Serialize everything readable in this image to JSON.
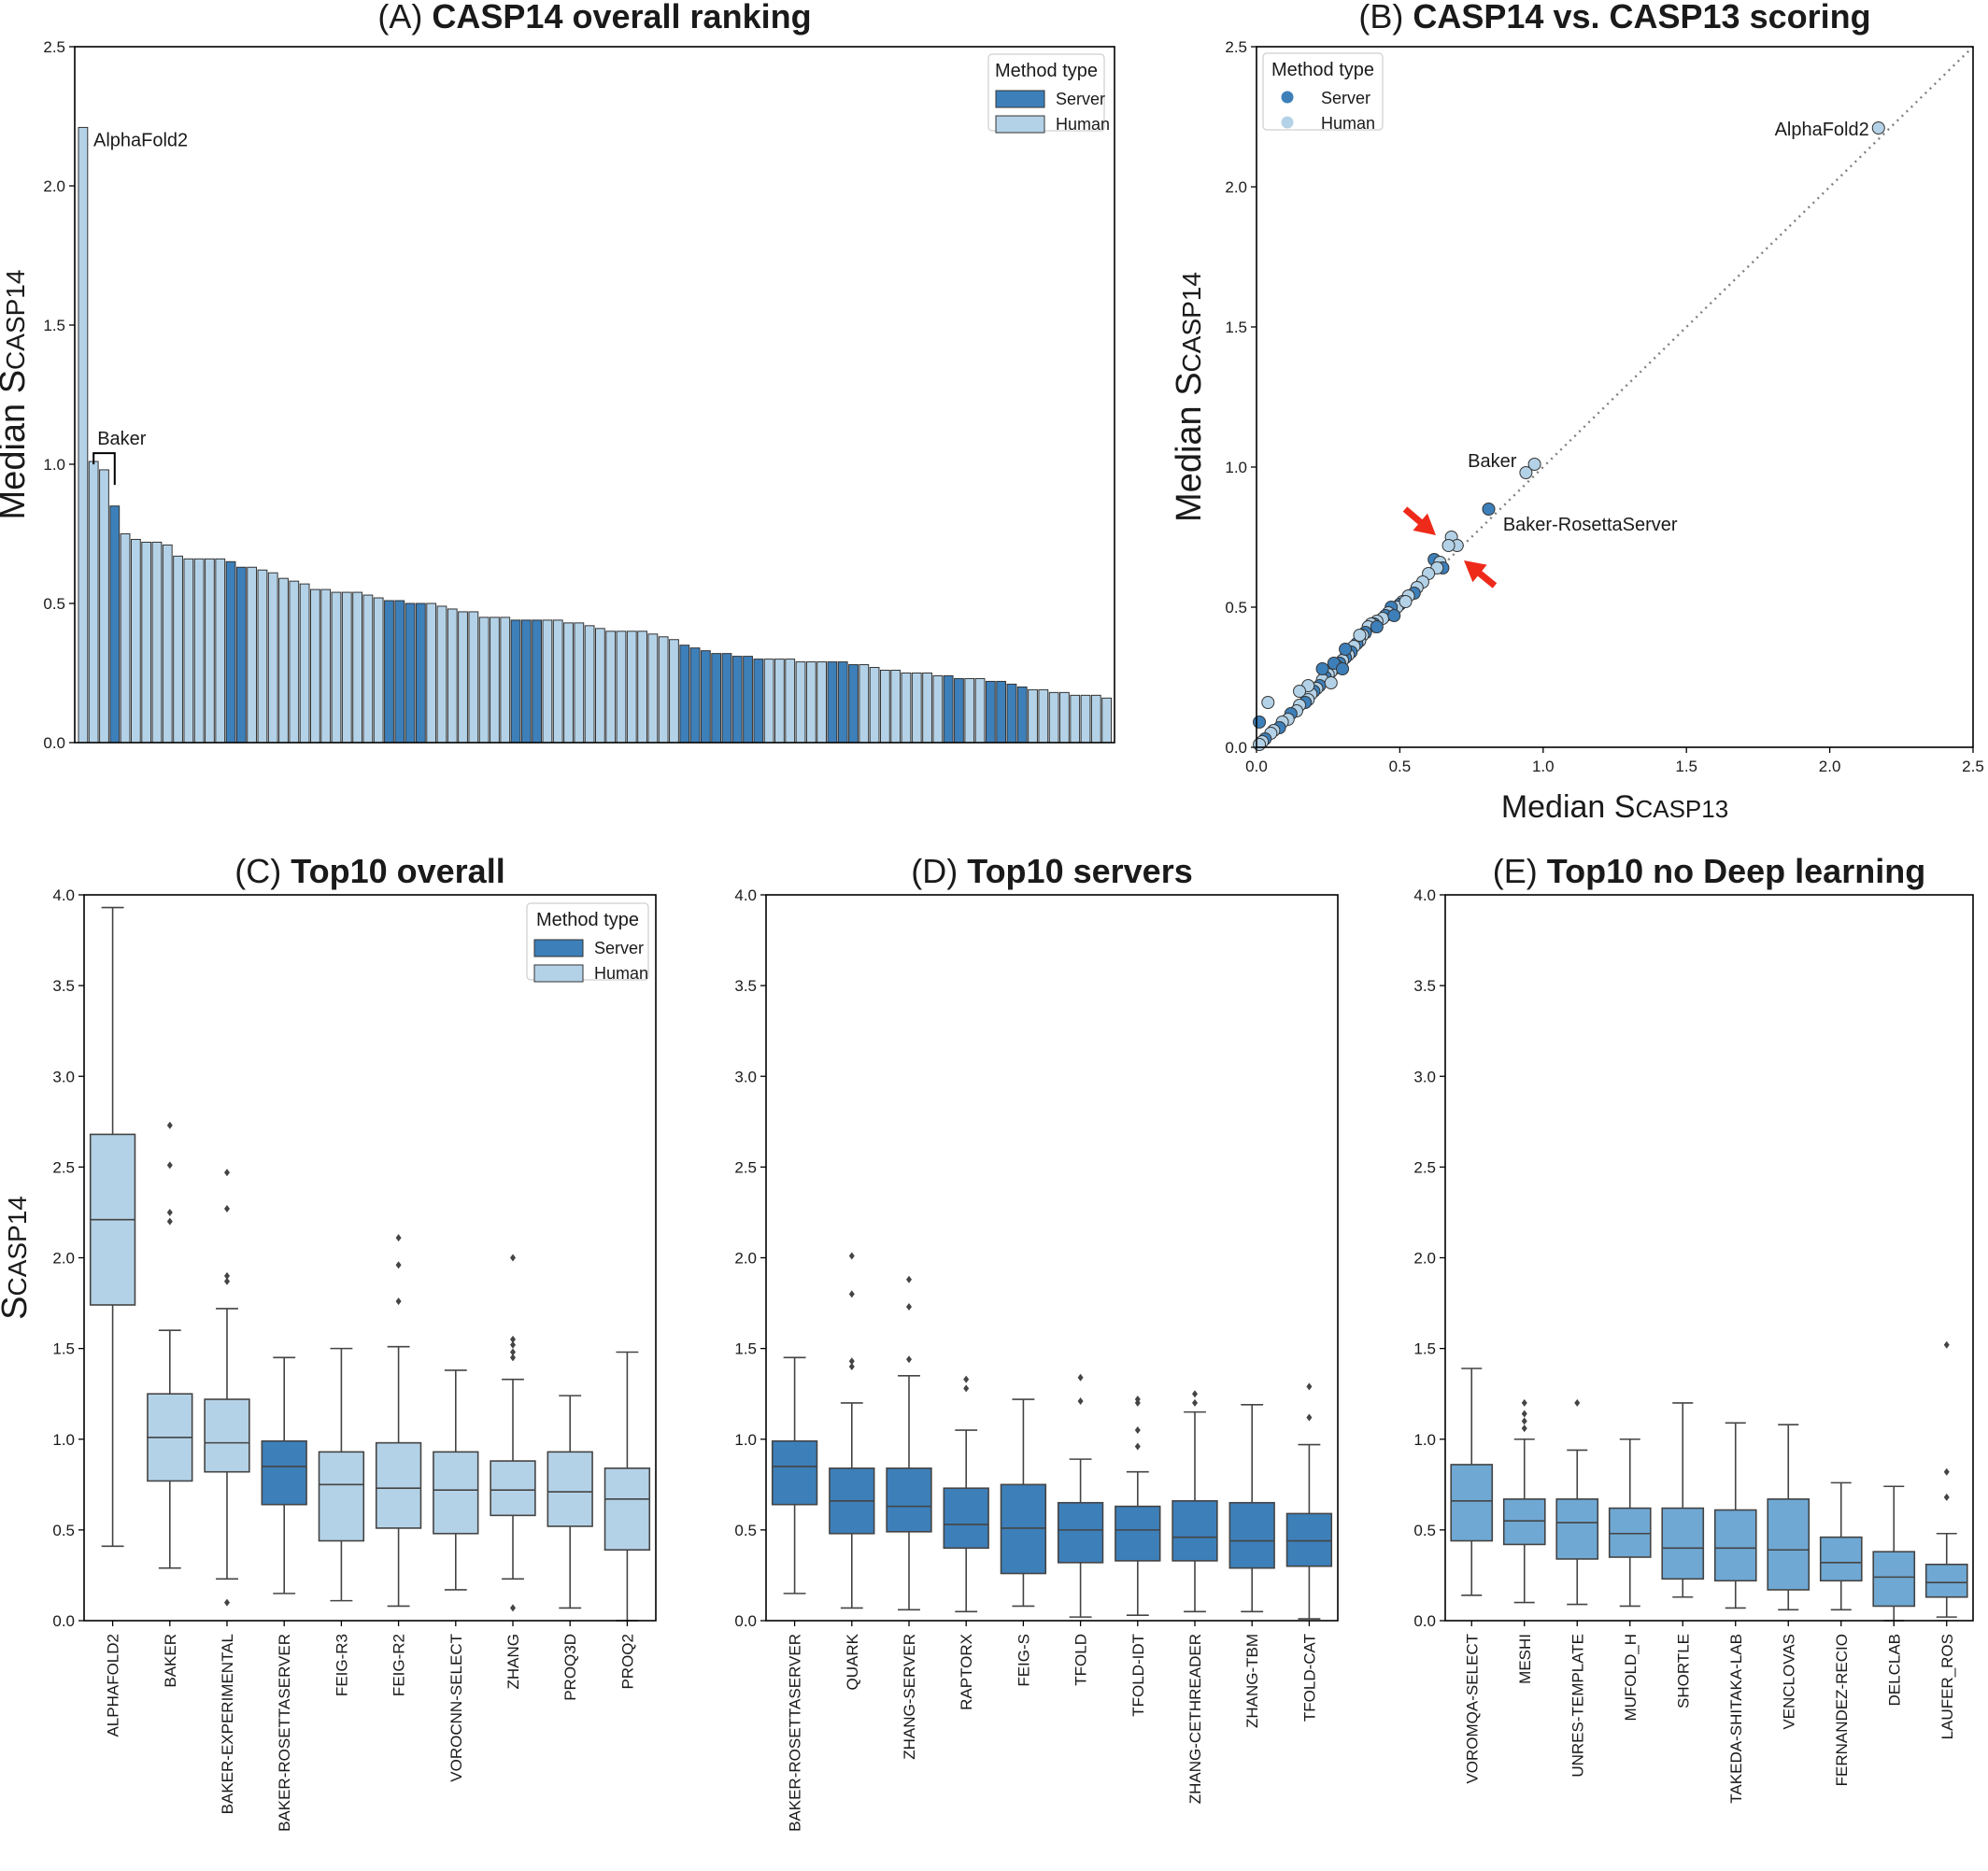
{
  "colors": {
    "server": "#3d7fb9",
    "human": "#b4d2e7",
    "noDL": "#6fa8d3",
    "edge": "#333333",
    "diag": "#7f7f7f",
    "arrow": "#ee2a1b"
  },
  "legend": {
    "title": "Method type",
    "server": "Server",
    "human": "Human"
  },
  "chart_data": [
    {
      "panel": "A",
      "type": "bar",
      "title_prefix": "(A)",
      "title": "CASP14 overall ranking",
      "ylabel_main": "Median S",
      "ylabel_sub": "CASP14",
      "xlabel": "",
      "ylim": [
        0,
        2.5
      ],
      "yticks": [
        "0.0",
        "0.5",
        "1.0",
        "1.5",
        "2.0",
        "2.5"
      ],
      "legend_position": "top-right",
      "annotations": [
        "AlphaFold2",
        "Baker"
      ],
      "values": [
        2.21,
        1.01,
        0.98,
        0.85,
        0.75,
        0.73,
        0.72,
        0.72,
        0.71,
        0.67,
        0.66,
        0.66,
        0.66,
        0.66,
        0.65,
        0.63,
        0.63,
        0.62,
        0.61,
        0.59,
        0.58,
        0.57,
        0.55,
        0.55,
        0.54,
        0.54,
        0.54,
        0.53,
        0.52,
        0.51,
        0.51,
        0.5,
        0.5,
        0.5,
        0.49,
        0.48,
        0.47,
        0.47,
        0.45,
        0.45,
        0.45,
        0.44,
        0.44,
        0.44,
        0.44,
        0.44,
        0.43,
        0.43,
        0.42,
        0.41,
        0.4,
        0.4,
        0.4,
        0.4,
        0.39,
        0.38,
        0.37,
        0.35,
        0.34,
        0.33,
        0.32,
        0.32,
        0.31,
        0.31,
        0.3,
        0.3,
        0.3,
        0.3,
        0.29,
        0.29,
        0.29,
        0.29,
        0.29,
        0.28,
        0.28,
        0.27,
        0.26,
        0.26,
        0.25,
        0.25,
        0.25,
        0.24,
        0.24,
        0.23,
        0.23,
        0.23,
        0.22,
        0.22,
        0.21,
        0.2,
        0.19,
        0.19,
        0.18,
        0.18,
        0.17,
        0.17,
        0.17,
        0.16
      ],
      "types": [
        "H",
        "H",
        "H",
        "S",
        "H",
        "H",
        "H",
        "H",
        "H",
        "H",
        "H",
        "H",
        "H",
        "H",
        "S",
        "S",
        "H",
        "H",
        "H",
        "H",
        "H",
        "H",
        "H",
        "H",
        "H",
        "H",
        "H",
        "H",
        "H",
        "S",
        "S",
        "S",
        "S",
        "H",
        "H",
        "H",
        "H",
        "H",
        "H",
        "H",
        "H",
        "S",
        "S",
        "S",
        "H",
        "H",
        "H",
        "H",
        "H",
        "H",
        "H",
        "H",
        "H",
        "H",
        "H",
        "H",
        "H",
        "S",
        "S",
        "S",
        "S",
        "S",
        "S",
        "S",
        "S",
        "H",
        "H",
        "H",
        "H",
        "H",
        "H",
        "S",
        "S",
        "S",
        "H",
        "H",
        "H",
        "H",
        "H",
        "H",
        "H",
        "H",
        "S",
        "S",
        "H",
        "H",
        "S",
        "S",
        "S",
        "S",
        "H",
        "H",
        "H",
        "H",
        "H",
        "H",
        "H",
        "H"
      ]
    },
    {
      "panel": "B",
      "type": "scatter",
      "title_prefix": "(B)",
      "title": "CASP14 vs. CASP13 scoring",
      "ylabel_main": "Median S",
      "ylabel_sub": "CASP14",
      "xlabel_main": "Median S",
      "xlabel_sub": "CASP13",
      "xlim": [
        0,
        2.5
      ],
      "ylim": [
        0,
        2.5
      ],
      "xticks": [
        "0.0",
        "0.5",
        "1.0",
        "1.5",
        "2.0",
        "2.5"
      ],
      "yticks": [
        "0.0",
        "0.5",
        "1.0",
        "1.5",
        "2.0",
        "2.5"
      ],
      "legend_position": "top-left",
      "labels": {
        "alphafold": "AlphaFold2",
        "baker": "Baker",
        "server": "Baker-RosettaServer"
      },
      "points": [
        [
          2.17,
          2.21,
          "H"
        ],
        [
          0.97,
          1.01,
          "H"
        ],
        [
          0.94,
          0.98,
          "H"
        ],
        [
          0.81,
          0.85,
          "S"
        ],
        [
          0.68,
          0.75,
          "H"
        ],
        [
          0.7,
          0.72,
          "H"
        ],
        [
          0.67,
          0.72,
          "H"
        ],
        [
          0.62,
          0.67,
          "S"
        ],
        [
          0.64,
          0.66,
          "H"
        ],
        [
          0.65,
          0.64,
          "S"
        ],
        [
          0.63,
          0.64,
          "H"
        ],
        [
          0.6,
          0.62,
          "H"
        ],
        [
          0.58,
          0.59,
          "H"
        ],
        [
          0.56,
          0.57,
          "H"
        ],
        [
          0.55,
          0.55,
          "S"
        ],
        [
          0.53,
          0.54,
          "H"
        ],
        [
          0.51,
          0.52,
          "H"
        ],
        [
          0.5,
          0.51,
          "S"
        ],
        [
          0.49,
          0.5,
          "H"
        ],
        [
          0.47,
          0.5,
          "S"
        ],
        [
          0.46,
          0.48,
          "H"
        ],
        [
          0.45,
          0.47,
          "S"
        ],
        [
          0.44,
          0.46,
          "H"
        ],
        [
          0.42,
          0.45,
          "H"
        ],
        [
          0.41,
          0.44,
          "S"
        ],
        [
          0.4,
          0.44,
          "H"
        ],
        [
          0.39,
          0.43,
          "H"
        ],
        [
          0.38,
          0.41,
          "S"
        ],
        [
          0.37,
          0.4,
          "H"
        ],
        [
          0.36,
          0.38,
          "H"
        ],
        [
          0.35,
          0.37,
          "S"
        ],
        [
          0.34,
          0.36,
          "H"
        ],
        [
          0.33,
          0.34,
          "S"
        ],
        [
          0.32,
          0.33,
          "H"
        ],
        [
          0.31,
          0.32,
          "S"
        ],
        [
          0.3,
          0.31,
          "H"
        ],
        [
          0.29,
          0.3,
          "S"
        ],
        [
          0.28,
          0.29,
          "H"
        ],
        [
          0.27,
          0.28,
          "S"
        ],
        [
          0.26,
          0.27,
          "H"
        ],
        [
          0.25,
          0.26,
          "H"
        ],
        [
          0.24,
          0.25,
          "S"
        ],
        [
          0.23,
          0.24,
          "H"
        ],
        [
          0.22,
          0.22,
          "S"
        ],
        [
          0.21,
          0.21,
          "H"
        ],
        [
          0.2,
          0.2,
          "S"
        ],
        [
          0.19,
          0.19,
          "H"
        ],
        [
          0.18,
          0.17,
          "H"
        ],
        [
          0.17,
          0.16,
          "S"
        ],
        [
          0.15,
          0.15,
          "H"
        ],
        [
          0.14,
          0.13,
          "H"
        ],
        [
          0.12,
          0.12,
          "S"
        ],
        [
          0.11,
          0.1,
          "H"
        ],
        [
          0.09,
          0.09,
          "H"
        ],
        [
          0.08,
          0.07,
          "S"
        ],
        [
          0.06,
          0.06,
          "H"
        ],
        [
          0.05,
          0.05,
          "H"
        ],
        [
          0.03,
          0.03,
          "S"
        ],
        [
          0.02,
          0.02,
          "H"
        ],
        [
          0.01,
          0.01,
          "H"
        ],
        [
          0.36,
          0.4,
          "H"
        ],
        [
          0.31,
          0.35,
          "S"
        ],
        [
          0.27,
          0.3,
          "S"
        ],
        [
          0.23,
          0.28,
          "S"
        ],
        [
          0.18,
          0.22,
          "H"
        ],
        [
          0.15,
          0.2,
          "H"
        ],
        [
          0.04,
          0.16,
          "H"
        ],
        [
          0.01,
          0.09,
          "S"
        ],
        [
          0.42,
          0.43,
          "S"
        ],
        [
          0.48,
          0.47,
          "S"
        ],
        [
          0.52,
          0.52,
          "H"
        ],
        [
          0.3,
          0.28,
          "S"
        ],
        [
          0.26,
          0.23,
          "H"
        ]
      ]
    },
    {
      "panel": "C",
      "type": "box",
      "title_prefix": "(C)",
      "title": "Top10 overall",
      "ylabel_main": "S",
      "ylabel_sub": "CASP14",
      "ylim": [
        0,
        4.0
      ],
      "yticks": [
        "0.0",
        "0.5",
        "1.0",
        "1.5",
        "2.0",
        "2.5",
        "3.0",
        "3.5",
        "4.0"
      ],
      "legend_position": "top-right",
      "categories": [
        "ALPHAFOLD2",
        "BAKER",
        "BAKER-EXPERIMENTAL",
        "BAKER-ROSETTASERVER",
        "FEIG-R3",
        "FEIG-R2",
        "VOROCNN-SELECT",
        "ZHANG",
        "PROQ3D",
        "PROQ2"
      ],
      "types": [
        "H",
        "H",
        "H",
        "S",
        "H",
        "H",
        "H",
        "H",
        "H",
        "H"
      ],
      "boxes": [
        {
          "whislo": 0.41,
          "q1": 1.74,
          "med": 2.21,
          "q3": 2.68,
          "whishi": 3.93,
          "fliers": []
        },
        {
          "whislo": 0.29,
          "q1": 0.77,
          "med": 1.01,
          "q3": 1.25,
          "whishi": 1.6,
          "fliers": [
            2.2,
            2.25,
            2.51,
            2.73
          ]
        },
        {
          "whislo": 0.23,
          "q1": 0.82,
          "med": 0.98,
          "q3": 1.22,
          "whishi": 1.72,
          "fliers": [
            0.1,
            1.87,
            1.9,
            2.27,
            2.47
          ]
        },
        {
          "whislo": 0.15,
          "q1": 0.64,
          "med": 0.85,
          "q3": 0.99,
          "whishi": 1.45,
          "fliers": []
        },
        {
          "whislo": 0.11,
          "q1": 0.44,
          "med": 0.75,
          "q3": 0.93,
          "whishi": 1.5,
          "fliers": []
        },
        {
          "whislo": 0.08,
          "q1": 0.51,
          "med": 0.73,
          "q3": 0.98,
          "whishi": 1.51,
          "fliers": [
            1.76,
            1.96,
            2.11
          ]
        },
        {
          "whislo": 0.17,
          "q1": 0.48,
          "med": 0.72,
          "q3": 0.93,
          "whishi": 1.38,
          "fliers": []
        },
        {
          "whislo": 0.23,
          "q1": 0.58,
          "med": 0.72,
          "q3": 0.88,
          "whishi": 1.33,
          "fliers": [
            0.07,
            1.45,
            1.48,
            1.52,
            1.55,
            2.0
          ]
        },
        {
          "whislo": 0.07,
          "q1": 0.52,
          "med": 0.71,
          "q3": 0.93,
          "whishi": 1.24,
          "fliers": []
        },
        {
          "whislo": 0.0,
          "q1": 0.39,
          "med": 0.67,
          "q3": 0.84,
          "whishi": 1.48,
          "fliers": []
        }
      ]
    },
    {
      "panel": "D",
      "type": "box",
      "title_prefix": "(D)",
      "title": "Top10 servers",
      "ylim": [
        0,
        4.0
      ],
      "yticks": [
        "0.0",
        "0.5",
        "1.0",
        "1.5",
        "2.0",
        "2.5",
        "3.0",
        "3.5",
        "4.0"
      ],
      "categories": [
        "BAKER-ROSETTASERVER",
        "QUARK",
        "ZHANG-SERVER",
        "RAPTORX",
        "FEIG-S",
        "TFOLD",
        "TFOLD-IDT",
        "ZHANG-CETHREADER",
        "ZHANG-TBM",
        "TFOLD-CAT"
      ],
      "types": [
        "S",
        "S",
        "S",
        "S",
        "S",
        "S",
        "S",
        "S",
        "S",
        "S"
      ],
      "boxes": [
        {
          "whislo": 0.15,
          "q1": 0.64,
          "med": 0.85,
          "q3": 0.99,
          "whishi": 1.45,
          "fliers": []
        },
        {
          "whislo": 0.07,
          "q1": 0.48,
          "med": 0.66,
          "q3": 0.84,
          "whishi": 1.2,
          "fliers": [
            1.4,
            1.43,
            1.8,
            2.01
          ]
        },
        {
          "whislo": 0.06,
          "q1": 0.49,
          "med": 0.63,
          "q3": 0.84,
          "whishi": 1.35,
          "fliers": [
            1.44,
            1.73,
            1.88
          ]
        },
        {
          "whislo": 0.05,
          "q1": 0.4,
          "med": 0.53,
          "q3": 0.73,
          "whishi": 1.05,
          "fliers": [
            1.28,
            1.33
          ]
        },
        {
          "whislo": 0.08,
          "q1": 0.26,
          "med": 0.51,
          "q3": 0.75,
          "whishi": 1.22,
          "fliers": []
        },
        {
          "whislo": 0.02,
          "q1": 0.32,
          "med": 0.5,
          "q3": 0.65,
          "whishi": 0.89,
          "fliers": [
            1.21,
            1.34
          ]
        },
        {
          "whislo": 0.03,
          "q1": 0.33,
          "med": 0.5,
          "q3": 0.63,
          "whishi": 0.82,
          "fliers": [
            0.96,
            1.05,
            1.2,
            1.22
          ]
        },
        {
          "whislo": 0.05,
          "q1": 0.33,
          "med": 0.46,
          "q3": 0.66,
          "whishi": 1.15,
          "fliers": [
            1.2,
            1.25
          ]
        },
        {
          "whislo": 0.05,
          "q1": 0.29,
          "med": 0.44,
          "q3": 0.65,
          "whishi": 1.19,
          "fliers": []
        },
        {
          "whislo": 0.01,
          "q1": 0.3,
          "med": 0.44,
          "q3": 0.59,
          "whishi": 0.97,
          "fliers": [
            1.12,
            1.29
          ]
        }
      ]
    },
    {
      "panel": "E",
      "type": "box",
      "title_prefix": "(E)",
      "title": "Top10 no Deep learning",
      "ylim": [
        0,
        4.0
      ],
      "yticks": [
        "0.0",
        "0.5",
        "1.0",
        "1.5",
        "2.0",
        "2.5",
        "3.0",
        "3.5",
        "4.0"
      ],
      "categories": [
        "VOROMQA-SELECT",
        "MESHI",
        "UNRES-TEMPLATE",
        "MUFOLD_H",
        "SHORTLE",
        "TAKEDA-SHITAKA-LAB",
        "VENCLOVAS",
        "FERNANDEZ-RECIO",
        "DELCLAB",
        "LAUFER_ROS"
      ],
      "types": [
        "N",
        "N",
        "N",
        "N",
        "N",
        "N",
        "N",
        "N",
        "N",
        "N"
      ],
      "boxes": [
        {
          "whislo": 0.14,
          "q1": 0.44,
          "med": 0.66,
          "q3": 0.86,
          "whishi": 1.39,
          "fliers": []
        },
        {
          "whislo": 0.1,
          "q1": 0.42,
          "med": 0.55,
          "q3": 0.67,
          "whishi": 1.0,
          "fliers": [
            1.06,
            1.1,
            1.14,
            1.2
          ]
        },
        {
          "whislo": 0.09,
          "q1": 0.34,
          "med": 0.54,
          "q3": 0.67,
          "whishi": 0.94,
          "fliers": [
            1.2
          ]
        },
        {
          "whislo": 0.08,
          "q1": 0.35,
          "med": 0.48,
          "q3": 0.62,
          "whishi": 1.0,
          "fliers": []
        },
        {
          "whislo": 0.13,
          "q1": 0.23,
          "med": 0.4,
          "q3": 0.62,
          "whishi": 1.2,
          "fliers": []
        },
        {
          "whislo": 0.07,
          "q1": 0.22,
          "med": 0.4,
          "q3": 0.61,
          "whishi": 1.09,
          "fliers": []
        },
        {
          "whislo": 0.06,
          "q1": 0.17,
          "med": 0.39,
          "q3": 0.67,
          "whishi": 1.08,
          "fliers": []
        },
        {
          "whislo": 0.06,
          "q1": 0.22,
          "med": 0.32,
          "q3": 0.46,
          "whishi": 0.76,
          "fliers": []
        },
        {
          "whislo": 0.0,
          "q1": 0.08,
          "med": 0.24,
          "q3": 0.38,
          "whishi": 0.74,
          "fliers": []
        },
        {
          "whislo": 0.02,
          "q1": 0.13,
          "med": 0.21,
          "q3": 0.31,
          "whishi": 0.48,
          "fliers": [
            0.68,
            0.82,
            1.52
          ]
        }
      ]
    }
  ]
}
